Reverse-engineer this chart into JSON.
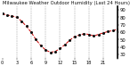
{
  "title": "Milwaukee Weather Outdoor Humidity (Last 24 Hours)",
  "x_values": [
    0,
    1,
    2,
    3,
    4,
    5,
    6,
    7,
    8,
    9,
    10,
    11,
    12,
    13,
    14,
    15,
    16,
    17,
    18,
    19,
    20,
    21,
    22,
    23,
    24
  ],
  "y_values": [
    85,
    83,
    82,
    80,
    75,
    68,
    60,
    50,
    42,
    36,
    33,
    34,
    38,
    43,
    49,
    54,
    56,
    58,
    57,
    55,
    57,
    59,
    61,
    62,
    64
  ],
  "line_color": "#cc0000",
  "marker_color": "#111111",
  "background_color": "#ffffff",
  "grid_color": "#999999",
  "ylim": [
    25,
    95
  ],
  "yticks": [
    30,
    40,
    50,
    60,
    70,
    80,
    90
  ],
  "ytick_labels": [
    "30",
    "40",
    "50",
    "60",
    "70",
    "80",
    "90"
  ],
  "xtick_positions": [
    0,
    3,
    6,
    9,
    12,
    15,
    18,
    21,
    24
  ],
  "xtick_labels": [
    "0",
    "3",
    "6",
    "9",
    "12",
    "15",
    "18",
    "21",
    ""
  ],
  "vline_positions": [
    3,
    6,
    9,
    12,
    15,
    18,
    21
  ],
  "title_fontsize": 3.8,
  "ylabel_fontsize": 3.8,
  "xlabel_fontsize": 3.5,
  "line_width": 0.7,
  "marker_size": 1.2
}
